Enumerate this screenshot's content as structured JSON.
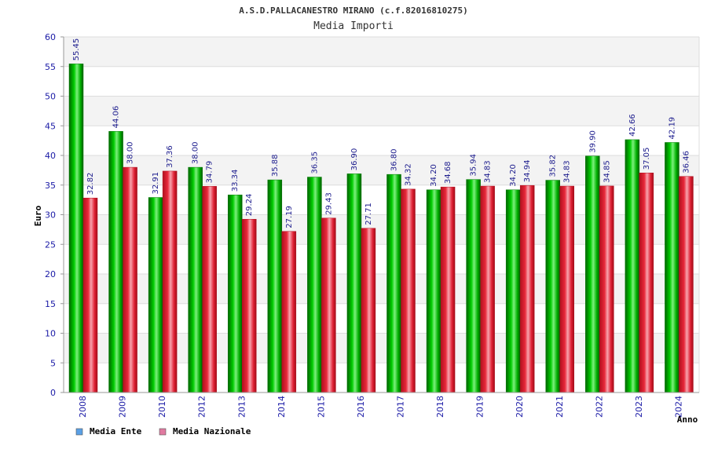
{
  "chart_data": {
    "type": "bar",
    "title": "A.S.D.PALLACANESTRO MIRANO (c.f.82016810275)",
    "subtitle": "Media Importi",
    "ylabel": "Euro",
    "xlabel": "Anno",
    "ylim": [
      0,
      60
    ],
    "yticks": [
      0,
      5,
      10,
      15,
      20,
      25,
      30,
      35,
      40,
      45,
      50,
      55,
      60
    ],
    "grid": true,
    "legend_position": "bottom-left",
    "categories": [
      "2008",
      "2009",
      "2010",
      "2012",
      "2013",
      "2014",
      "2015",
      "2016",
      "2017",
      "2018",
      "2019",
      "2020",
      "2021",
      "2022",
      "2023",
      "2024"
    ],
    "series": [
      {
        "name": "Media Ente",
        "color": "#00b400",
        "legend_color": "#5aa0e6",
        "values": [
          55.45,
          44.06,
          32.91,
          38.0,
          33.34,
          35.88,
          36.35,
          36.9,
          36.8,
          34.2,
          35.94,
          34.2,
          35.82,
          39.9,
          42.66,
          42.19
        ],
        "labels": [
          "55.45",
          "44.06",
          "32.91",
          "38.00",
          "33.34",
          "35.88",
          "36.35",
          "36.90",
          "36.80",
          "34.20",
          "35.94",
          "34.20",
          "35.82",
          "39.90",
          "42.66",
          "42.19"
        ]
      },
      {
        "name": "Media Nazionale",
        "color": "#e0283c",
        "legend_color": "#e07aa0",
        "values": [
          32.82,
          38.0,
          37.36,
          34.79,
          29.24,
          27.19,
          29.43,
          27.71,
          34.32,
          34.68,
          34.83,
          34.94,
          34.83,
          34.85,
          37.05,
          36.46
        ],
        "labels": [
          "32.82",
          "38.00",
          "37.36",
          "34.79",
          "29.24",
          "27.19",
          "29.43",
          "27.71",
          "34.32",
          "34.68",
          "34.83",
          "34.94",
          "34.83",
          "34.85",
          "37.05",
          "36.46"
        ]
      }
    ]
  }
}
